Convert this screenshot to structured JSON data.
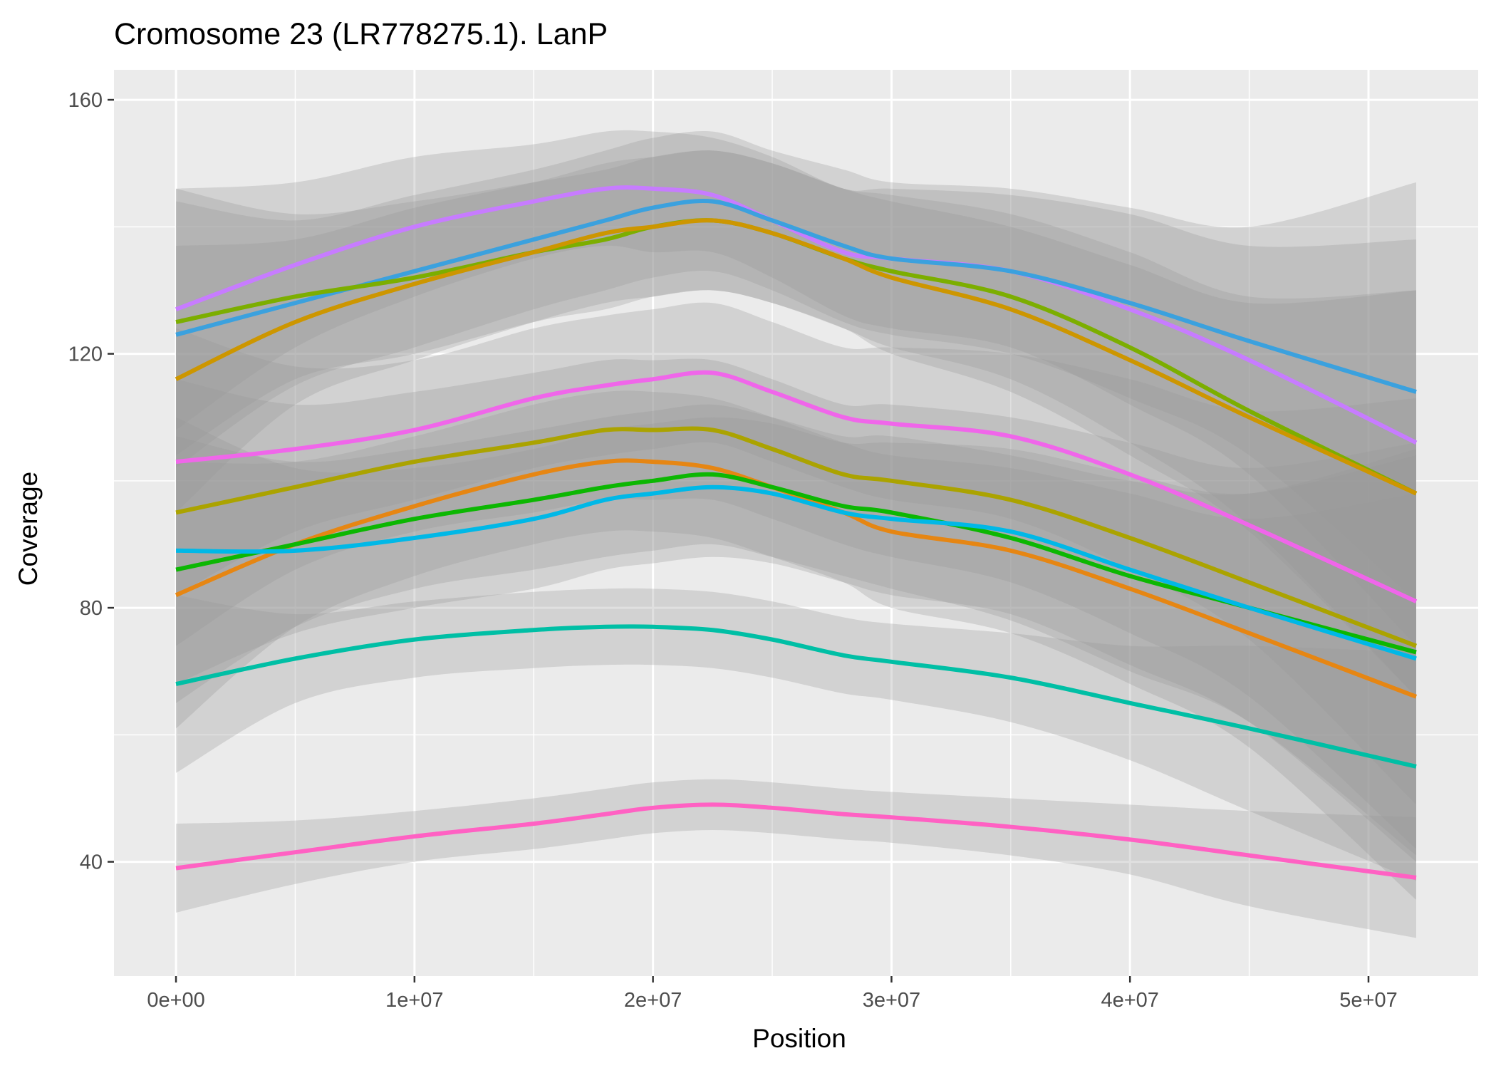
{
  "chart_data": {
    "type": "line",
    "title": "Cromosome 23 (LR778275.1). LanP",
    "xlabel": "Position",
    "ylabel": "Coverage",
    "xlim": [
      -2600000,
      54600000
    ],
    "ylim": [
      22,
      160
    ],
    "x_ticks": [
      0,
      10000000,
      20000000,
      30000000,
      40000000,
      50000000
    ],
    "x_tick_labels": [
      "0e+00",
      "1e+07",
      "2e+07",
      "3e+07",
      "4e+07",
      "5e+07"
    ],
    "y_ticks": [
      40,
      80,
      120,
      160
    ],
    "y_tick_labels": [
      "40",
      "80",
      "120",
      "160"
    ],
    "grid": true,
    "legend": "none",
    "band_color": "#999999",
    "x": [
      0,
      5000000,
      10000000,
      15000000,
      18000000,
      20000000,
      22500000,
      25000000,
      28000000,
      30000000,
      35000000,
      40000000,
      45000000,
      52000000
    ],
    "series": [
      {
        "color": "#C77CFF",
        "values": [
          127,
          134,
          140,
          144,
          146,
          146,
          145,
          141,
          136,
          135,
          133,
          127,
          119,
          106
        ],
        "band_lower": [
          108,
          121,
          129,
          135,
          137,
          136,
          136,
          132,
          126,
          124,
          121,
          112,
          101,
          74
        ],
        "band_upper": [
          146,
          147,
          151,
          153,
          155,
          155,
          154,
          151,
          146,
          146,
          145,
          142,
          137,
          138
        ]
      },
      {
        "color": "#3BA1DE",
        "values": [
          123,
          128,
          133,
          138,
          141,
          143,
          144,
          141,
          137,
          135,
          133,
          128,
          122,
          114
        ],
        "band_lower": [
          102,
          115,
          121,
          127,
          130,
          132,
          133,
          130,
          125,
          123,
          120,
          113,
          104,
          81
        ],
        "band_upper": [
          144,
          141,
          145,
          149,
          152,
          154,
          155,
          152,
          149,
          147,
          146,
          143,
          140,
          147
        ]
      },
      {
        "color": "#7CAE00",
        "values": [
          125,
          129,
          132,
          136,
          138,
          140,
          141,
          139,
          135,
          133,
          129,
          121,
          111,
          98
        ],
        "band_lower": [
          104,
          116,
          120,
          125,
          127,
          129,
          130,
          128,
          124,
          121,
          116,
          106,
          93,
          66
        ],
        "band_upper": [
          146,
          142,
          144,
          147,
          149,
          151,
          152,
          150,
          146,
          145,
          142,
          136,
          129,
          130
        ]
      },
      {
        "color": "#CD9600",
        "values": [
          116,
          125,
          131,
          136,
          139,
          140,
          141,
          139,
          135,
          132,
          127,
          119,
          110,
          98
        ],
        "band_lower": [
          95,
          112,
          119,
          125,
          128,
          129,
          130,
          128,
          124,
          120,
          114,
          104,
          92,
          66
        ],
        "band_upper": [
          137,
          138,
          143,
          147,
          150,
          151,
          152,
          150,
          146,
          144,
          140,
          134,
          128,
          130
        ]
      },
      {
        "color": "#F066EA",
        "values": [
          103,
          105,
          108,
          113,
          115,
          116,
          117,
          114,
          110,
          109,
          107,
          101,
          93,
          81
        ],
        "band_lower": [
          82,
          92,
          97,
          102,
          104,
          105,
          106,
          103,
          99,
          97,
          94,
          86,
          75,
          49
        ],
        "band_upper": [
          124,
          118,
          119,
          124,
          126,
          127,
          128,
          125,
          121,
          121,
          120,
          116,
          111,
          113
        ]
      },
      {
        "color": "#ABA300",
        "values": [
          95,
          99,
          103,
          106,
          108,
          108,
          108,
          105,
          101,
          100,
          97,
          91,
          84,
          74
        ],
        "band_lower": [
          74,
          86,
          92,
          95,
          97,
          97,
          97,
          94,
          90,
          88,
          84,
          76,
          66,
          42
        ],
        "band_upper": [
          116,
          112,
          114,
          117,
          119,
          119,
          119,
          116,
          112,
          112,
          110,
          106,
          102,
          106
        ]
      },
      {
        "color": "#E68613",
        "values": [
          82,
          90,
          96,
          101,
          103,
          103,
          102,
          99,
          95,
          92,
          89,
          83,
          76,
          66
        ],
        "band_lower": [
          61,
          77,
          85,
          90,
          92,
          92,
          91,
          88,
          84,
          80,
          76,
          68,
          58,
          34
        ],
        "band_upper": [
          103,
          103,
          107,
          112,
          114,
          114,
          113,
          110,
          106,
          104,
          102,
          98,
          94,
          98
        ]
      },
      {
        "color": "#0CB702",
        "values": [
          86,
          90,
          94,
          97,
          99,
          100,
          101,
          99,
          96,
          95,
          91,
          85,
          80,
          73
        ],
        "band_lower": [
          65,
          77,
          83,
          86,
          88,
          89,
          90,
          88,
          85,
          83,
          78,
          70,
          62,
          41
        ],
        "band_upper": [
          107,
          103,
          105,
          108,
          110,
          111,
          112,
          110,
          107,
          107,
          104,
          100,
          98,
          105
        ]
      },
      {
        "color": "#00B8E7",
        "values": [
          89,
          89,
          91,
          94,
          97,
          98,
          99,
          98,
          95,
          94,
          92,
          86,
          80,
          72
        ],
        "band_lower": [
          68,
          76,
          80,
          83,
          86,
          87,
          88,
          87,
          84,
          82,
          79,
          71,
          62,
          40
        ],
        "band_upper": [
          110,
          102,
          102,
          105,
          108,
          109,
          110,
          109,
          106,
          106,
          105,
          101,
          98,
          104
        ]
      },
      {
        "color": "#00BFA5",
        "values": [
          68,
          72,
          75,
          76.5,
          77,
          77,
          76.5,
          75,
          72.5,
          71.5,
          69,
          65,
          61,
          55
        ],
        "band_lower": [
          54,
          65,
          69,
          70.5,
          71,
          71,
          70.5,
          69,
          66.5,
          65.5,
          62,
          56,
          48,
          37
        ],
        "band_upper": [
          82,
          79,
          81,
          82.5,
          83,
          83,
          82.5,
          81,
          78.5,
          77.5,
          76,
          74,
          74,
          73
        ]
      },
      {
        "color": "#FF61C3",
        "values": [
          39,
          41.5,
          44,
          46,
          47.5,
          48.5,
          49,
          48.5,
          47.5,
          47,
          45.5,
          43.5,
          41,
          37.5
        ],
        "band_lower": [
          32,
          36.5,
          40,
          42,
          43.5,
          44.5,
          45,
          44.5,
          43.5,
          43,
          41,
          38,
          33,
          28
        ],
        "band_upper": [
          46,
          46.5,
          48,
          50,
          51.5,
          52.5,
          53,
          52.5,
          51.5,
          51,
          50,
          49,
          48,
          47
        ]
      }
    ]
  }
}
